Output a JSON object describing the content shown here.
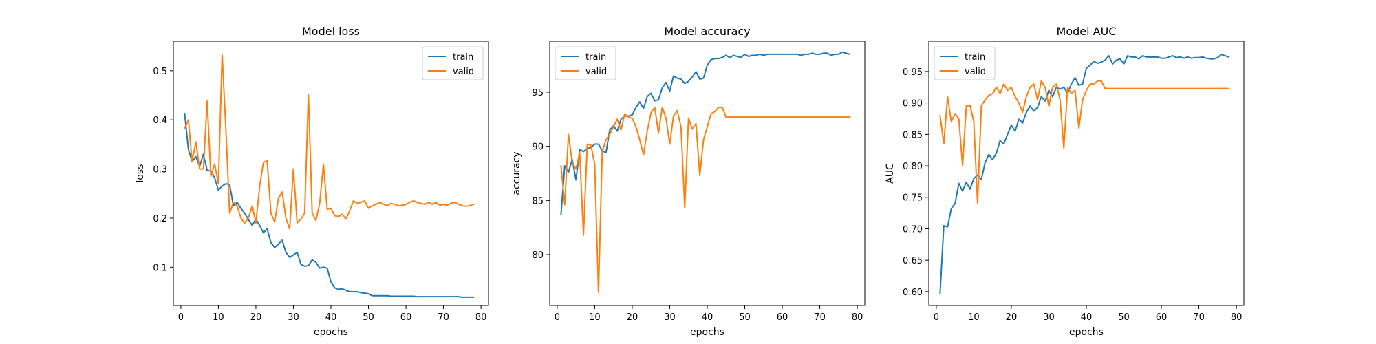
{
  "colors": {
    "train": "#1f77b4",
    "valid": "#ff7f0e"
  },
  "chart_data": [
    {
      "type": "line",
      "title": "Model loss",
      "xlabel": "epochs",
      "ylabel": "loss",
      "xlim": [
        -2,
        82
      ],
      "ylim": [
        0.022,
        0.56
      ],
      "xticks": [
        0,
        10,
        20,
        30,
        40,
        50,
        60,
        70,
        80
      ],
      "yticks": [
        0.1,
        0.2,
        0.3,
        0.4,
        0.5
      ],
      "ytick_format": 1,
      "legend": "top-right",
      "grid": false,
      "x": [
        1,
        2,
        3,
        4,
        5,
        6,
        7,
        8,
        9,
        10,
        11,
        12,
        13,
        14,
        15,
        16,
        17,
        18,
        19,
        20,
        21,
        22,
        23,
        24,
        25,
        26,
        27,
        28,
        29,
        30,
        31,
        32,
        33,
        34,
        35,
        36,
        37,
        38,
        39,
        40,
        41,
        42,
        43,
        44,
        45,
        46,
        47,
        48,
        49,
        50,
        51,
        52,
        53,
        54,
        55,
        56,
        57,
        58,
        59,
        60,
        61,
        62,
        63,
        64,
        65,
        66,
        67,
        68,
        69,
        70,
        71,
        72,
        73,
        74,
        75,
        76,
        77,
        78
      ],
      "series": [
        {
          "name": "train",
          "values": [
            0.413,
            0.34,
            0.315,
            0.325,
            0.305,
            0.33,
            0.297,
            0.296,
            0.282,
            0.257,
            0.265,
            0.27,
            0.268,
            0.225,
            0.232,
            0.22,
            0.21,
            0.197,
            0.185,
            0.198,
            0.185,
            0.17,
            0.178,
            0.15,
            0.14,
            0.147,
            0.155,
            0.13,
            0.12,
            0.125,
            0.13,
            0.106,
            0.102,
            0.103,
            0.115,
            0.11,
            0.098,
            0.1,
            0.098,
            0.07,
            0.058,
            0.055,
            0.056,
            0.053,
            0.05,
            0.05,
            0.05,
            0.048,
            0.047,
            0.046,
            0.042,
            0.042,
            0.042,
            0.042,
            0.042,
            0.041,
            0.041,
            0.041,
            0.041,
            0.041,
            0.041,
            0.041,
            0.04,
            0.04,
            0.04,
            0.04,
            0.04,
            0.04,
            0.04,
            0.04,
            0.04,
            0.04,
            0.04,
            0.04,
            0.039,
            0.039,
            0.039,
            0.039
          ]
        },
        {
          "name": "valid",
          "values": [
            0.383,
            0.4,
            0.315,
            0.355,
            0.3,
            0.3,
            0.438,
            0.285,
            0.31,
            0.27,
            0.533,
            0.38,
            0.21,
            0.232,
            0.225,
            0.2,
            0.19,
            0.2,
            0.225,
            0.19,
            0.265,
            0.313,
            0.317,
            0.21,
            0.192,
            0.24,
            0.253,
            0.2,
            0.178,
            0.3,
            0.19,
            0.198,
            0.21,
            0.452,
            0.21,
            0.195,
            0.23,
            0.31,
            0.218,
            0.22,
            0.205,
            0.203,
            0.208,
            0.198,
            0.215,
            0.235,
            0.23,
            0.232,
            0.235,
            0.22,
            0.225,
            0.228,
            0.232,
            0.228,
            0.225,
            0.23,
            0.228,
            0.225,
            0.226,
            0.228,
            0.232,
            0.235,
            0.232,
            0.23,
            0.228,
            0.232,
            0.228,
            0.232,
            0.226,
            0.228,
            0.226,
            0.23,
            0.232,
            0.228,
            0.225,
            0.224,
            0.225,
            0.228
          ]
        }
      ]
    },
    {
      "type": "line",
      "title": "Model accuracy",
      "xlabel": "epochs",
      "ylabel": "accuracy",
      "xlim": [
        -2,
        82
      ],
      "ylim": [
        75.3,
        99.7
      ],
      "xticks": [
        0,
        10,
        20,
        30,
        40,
        50,
        60,
        70,
        80
      ],
      "yticks": [
        80,
        85,
        90,
        95
      ],
      "ytick_format": 0,
      "legend": "top-left",
      "grid": false,
      "x": [
        1,
        2,
        3,
        4,
        5,
        6,
        7,
        8,
        9,
        10,
        11,
        12,
        13,
        14,
        15,
        16,
        17,
        18,
        19,
        20,
        21,
        22,
        23,
        24,
        25,
        26,
        27,
        28,
        29,
        30,
        31,
        32,
        33,
        34,
        35,
        36,
        37,
        38,
        39,
        40,
        41,
        42,
        43,
        44,
        45,
        46,
        47,
        48,
        49,
        50,
        51,
        52,
        53,
        54,
        55,
        56,
        57,
        58,
        59,
        60,
        61,
        62,
        63,
        64,
        65,
        66,
        67,
        68,
        69,
        70,
        71,
        72,
        73,
        74,
        75,
        76,
        77,
        78
      ],
      "series": [
        {
          "name": "train",
          "values": [
            83.7,
            88.2,
            87.6,
            88.8,
            86.9,
            89.7,
            89.5,
            89.8,
            89.9,
            90.2,
            90.2,
            89.6,
            89.4,
            91.5,
            91.9,
            91.4,
            92.5,
            92.8,
            92.8,
            92.9,
            93.6,
            94.1,
            93.5,
            94.6,
            94.9,
            94.2,
            94.3,
            95.4,
            95.9,
            95.1,
            96.5,
            96.3,
            96.2,
            95.8,
            96.0,
            96.4,
            96.9,
            96.2,
            96.3,
            97.5,
            98.0,
            98.1,
            98.1,
            98.2,
            98.4,
            98.2,
            98.4,
            98.3,
            98.2,
            98.5,
            98.3,
            98.4,
            98.4,
            98.5,
            98.4,
            98.5,
            98.5,
            98.5,
            98.5,
            98.5,
            98.5,
            98.5,
            98.5,
            98.5,
            98.4,
            98.5,
            98.5,
            98.6,
            98.5,
            98.5,
            98.6,
            98.6,
            98.4,
            98.5,
            98.5,
            98.7,
            98.6,
            98.5
          ]
        },
        {
          "name": "valid",
          "values": [
            88.2,
            84.6,
            91.1,
            88.5,
            87.9,
            89.4,
            81.8,
            90.2,
            90.1,
            88.3,
            76.5,
            89.5,
            90.6,
            91.1,
            91.8,
            92.5,
            91.5,
            93.0,
            92.7,
            92.6,
            91.8,
            90.6,
            89.2,
            91.4,
            93.1,
            93.6,
            91.2,
            93.6,
            92.6,
            90.2,
            92.8,
            93.3,
            91.8,
            84.3,
            92.6,
            91.6,
            92.1,
            87.3,
            90.6,
            91.8,
            93.0,
            93.2,
            93.6,
            93.6,
            92.7,
            92.7,
            92.7,
            92.7,
            92.7,
            92.7,
            92.7,
            92.7,
            92.7,
            92.7,
            92.7,
            92.7,
            92.7,
            92.7,
            92.7,
            92.7,
            92.7,
            92.7,
            92.7,
            92.7,
            92.7,
            92.7,
            92.7,
            92.7,
            92.7,
            92.7,
            92.7,
            92.7,
            92.7,
            92.7,
            92.7,
            92.7,
            92.7,
            92.7
          ]
        }
      ]
    },
    {
      "type": "line",
      "title": "Model AUC",
      "xlabel": "epochs",
      "ylabel": "AUC",
      "xlim": [
        -2,
        82
      ],
      "ylim": [
        0.578,
        0.998
      ],
      "xticks": [
        0,
        10,
        20,
        30,
        40,
        50,
        60,
        70,
        80
      ],
      "yticks": [
        0.6,
        0.65,
        0.7,
        0.75,
        0.8,
        0.85,
        0.9,
        0.95
      ],
      "ytick_format": 2,
      "legend": "top-left",
      "grid": false,
      "x": [
        1,
        2,
        3,
        4,
        5,
        6,
        7,
        8,
        9,
        10,
        11,
        12,
        13,
        14,
        15,
        16,
        17,
        18,
        19,
        20,
        21,
        22,
        23,
        24,
        25,
        26,
        27,
        28,
        29,
        30,
        31,
        32,
        33,
        34,
        35,
        36,
        37,
        38,
        39,
        40,
        41,
        42,
        43,
        44,
        45,
        46,
        47,
        48,
        49,
        50,
        51,
        52,
        53,
        54,
        55,
        56,
        57,
        58,
        59,
        60,
        61,
        62,
        63,
        64,
        65,
        66,
        67,
        68,
        69,
        70,
        71,
        72,
        73,
        74,
        75,
        76,
        77,
        78
      ],
      "series": [
        {
          "name": "train",
          "values": [
            0.597,
            0.705,
            0.703,
            0.732,
            0.74,
            0.772,
            0.76,
            0.774,
            0.763,
            0.78,
            0.785,
            0.778,
            0.805,
            0.818,
            0.81,
            0.82,
            0.84,
            0.835,
            0.85,
            0.865,
            0.855,
            0.874,
            0.868,
            0.885,
            0.895,
            0.887,
            0.893,
            0.91,
            0.903,
            0.92,
            0.91,
            0.925,
            0.922,
            0.925,
            0.915,
            0.93,
            0.94,
            0.928,
            0.93,
            0.955,
            0.96,
            0.966,
            0.963,
            0.965,
            0.968,
            0.975,
            0.962,
            0.968,
            0.97,
            0.962,
            0.975,
            0.973,
            0.973,
            0.97,
            0.975,
            0.973,
            0.973,
            0.973,
            0.973,
            0.971,
            0.971,
            0.973,
            0.975,
            0.972,
            0.973,
            0.971,
            0.973,
            0.971,
            0.972,
            0.972,
            0.973,
            0.971,
            0.97,
            0.97,
            0.972,
            0.977,
            0.975,
            0.973
          ]
        },
        {
          "name": "valid",
          "values": [
            0.88,
            0.835,
            0.91,
            0.87,
            0.883,
            0.875,
            0.8,
            0.895,
            0.896,
            0.87,
            0.74,
            0.895,
            0.905,
            0.912,
            0.915,
            0.925,
            0.915,
            0.93,
            0.92,
            0.925,
            0.91,
            0.9,
            0.885,
            0.91,
            0.925,
            0.93,
            0.905,
            0.935,
            0.925,
            0.895,
            0.925,
            0.93,
            0.905,
            0.828,
            0.925,
            0.915,
            0.92,
            0.86,
            0.905,
            0.92,
            0.93,
            0.93,
            0.935,
            0.935,
            0.923,
            0.923,
            0.923,
            0.923,
            0.923,
            0.923,
            0.923,
            0.923,
            0.923,
            0.923,
            0.923,
            0.923,
            0.923,
            0.923,
            0.923,
            0.923,
            0.923,
            0.923,
            0.923,
            0.923,
            0.923,
            0.923,
            0.923,
            0.923,
            0.923,
            0.923,
            0.923,
            0.923,
            0.923,
            0.923,
            0.923,
            0.923,
            0.923,
            0.923
          ]
        }
      ]
    }
  ]
}
